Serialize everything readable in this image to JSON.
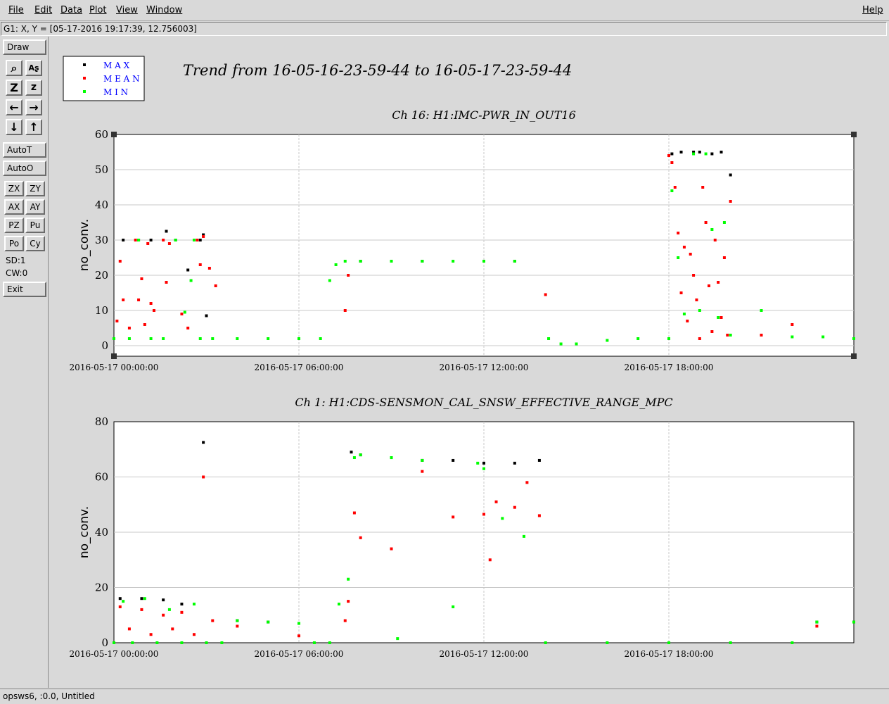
{
  "menu": {
    "file": "File",
    "edit": "Edit",
    "data": "Data",
    "plot": "Plot",
    "view": "View",
    "window": "Window",
    "help": "Help"
  },
  "status": "G1: X, Y = [05-17-2016 19:17:39, 12.756003]",
  "toolbar": {
    "draw": "Draw",
    "icons": [
      "magnify-icon",
      "text-ab-icon",
      "zoom-big-icon",
      "zoom-small-icon",
      "arrow-left-icon",
      "arrow-right-icon",
      "arrow-down-icon",
      "arrow-up-icon"
    ],
    "autot": "AutoT",
    "autoo": "AutoO",
    "grid_buttons": [
      "ZX",
      "ZY",
      "AX",
      "AY",
      "PZ",
      "Pu",
      "Po",
      "Cy"
    ],
    "sd": "SD:1",
    "cw": "CW:0",
    "exit": "Exit"
  },
  "legend": {
    "entries": [
      {
        "label": "M A X",
        "color": "#000000"
      },
      {
        "label": "M E A N",
        "color": "#ff0000"
      },
      {
        "label": "M I N",
        "color": "#00ff00"
      }
    ]
  },
  "main_title": "Trend from 16-05-16-23-59-44 to 16-05-17-23-59-44",
  "footer": "opsws6, :0.0, Untitled",
  "chart_data": [
    {
      "type": "scatter",
      "title": "Ch 16: H1:IMC-PWR_IN_OUT16",
      "ylabel": "no_conv.",
      "xlabel": "",
      "ylim": [
        -3,
        60
      ],
      "yticks": [
        0,
        10,
        20,
        30,
        40,
        50,
        60
      ],
      "xlim_hours": [
        0,
        24
      ],
      "xticks": [
        "2016-05-17 00:00:00",
        "2016-05-17 06:00:00",
        "2016-05-17 12:00:00",
        "2016-05-17 18:00:00"
      ],
      "grid": true,
      "series": [
        {
          "name": "MAX",
          "color": "#000000",
          "x": [
            0.3,
            0.8,
            1.2,
            1.7,
            2.0,
            2.4,
            2.8,
            2.9,
            3.0,
            8.0,
            10.0,
            13.0,
            18.1,
            18.4,
            18.8,
            19.0,
            19.4,
            19.7,
            20.0
          ],
          "y": [
            30,
            30,
            30,
            32.5,
            30,
            21.5,
            30,
            31.5,
            8.5,
            24,
            24,
            24,
            54.5,
            55,
            55,
            55,
            54.5,
            55,
            48.5
          ]
        },
        {
          "name": "MEAN",
          "color": "#ff0000",
          "x": [
            0.1,
            0.2,
            0.3,
            0.5,
            0.7,
            0.8,
            0.9,
            1.0,
            1.1,
            1.2,
            1.3,
            1.6,
            1.7,
            1.8,
            2.2,
            2.4,
            2.7,
            2.8,
            2.9,
            3.1,
            3.3,
            7.5,
            7.6,
            14.0,
            18.0,
            18.1,
            18.2,
            18.3,
            18.4,
            18.5,
            18.6,
            18.7,
            18.8,
            18.9,
            19.0,
            19.1,
            19.2,
            19.3,
            19.4,
            19.5,
            19.6,
            19.7,
            19.8,
            19.9,
            20.0,
            21.0,
            22.0
          ],
          "y": [
            7,
            24,
            13,
            5,
            30,
            13,
            19,
            6,
            29,
            12,
            10,
            30,
            18,
            29,
            9,
            5,
            30,
            23,
            31,
            22,
            17,
            10,
            20,
            14.5,
            54,
            52,
            45,
            32,
            15,
            28,
            7,
            26,
            20,
            13,
            2,
            45,
            35,
            17,
            4,
            30,
            18,
            8,
            25,
            3,
            41,
            3,
            6
          ]
        },
        {
          "name": "MIN",
          "color": "#00ff00",
          "x": [
            0.0,
            0.5,
            0.8,
            1.2,
            1.6,
            2.0,
            2.3,
            2.5,
            2.6,
            2.8,
            3.2,
            4.0,
            5.0,
            6.0,
            6.7,
            7.0,
            7.2,
            7.5,
            8.0,
            9.0,
            10.0,
            11.0,
            12.0,
            13.0,
            14.1,
            14.5,
            15.0,
            16.0,
            17.0,
            18.0,
            18.1,
            18.3,
            18.5,
            18.8,
            19.0,
            19.2,
            19.4,
            19.6,
            19.8,
            20.0,
            21.0,
            22.0,
            23.0,
            24.0
          ],
          "y": [
            2,
            2,
            30,
            2,
            2,
            30,
            9.5,
            18.5,
            30,
            2,
            2,
            2,
            2,
            2,
            2,
            18.5,
            23,
            24,
            24,
            24,
            24,
            24,
            24,
            24,
            2,
            0.5,
            0.5,
            1.5,
            2,
            2,
            44,
            25,
            9,
            54.5,
            10,
            54.5,
            33,
            8,
            35,
            3,
            10,
            2.5,
            2.5,
            2
          ]
        }
      ]
    },
    {
      "type": "scatter",
      "title": "Ch 1: H1:CDS-SENSMON_CAL_SNSW_EFFECTIVE_RANGE_MPC",
      "ylabel": "no_conv.",
      "xlabel": "",
      "ylim": [
        0,
        80
      ],
      "yticks": [
        0,
        20,
        40,
        60,
        80
      ],
      "xlim_hours": [
        0,
        24
      ],
      "xticks": [
        "2016-05-17 00:00:00",
        "2016-05-17 06:00:00",
        "2016-05-17 12:00:00",
        "2016-05-17 18:00:00"
      ],
      "grid": true,
      "series": [
        {
          "name": "MAX",
          "color": "#000000",
          "x": [
            0.2,
            0.9,
            1.6,
            2.2,
            2.9,
            4.0,
            5.0,
            6.0,
            7.7,
            8.0,
            9.0,
            10.0,
            11.0,
            12.0,
            13.0,
            13.8,
            22.8,
            24.0
          ],
          "y": [
            16,
            16,
            15.5,
            14,
            72.5,
            8,
            7.5,
            7,
            69,
            68,
            67,
            66,
            66,
            65,
            65,
            66,
            7.5,
            7.5
          ]
        },
        {
          "name": "MEAN",
          "color": "#ff0000",
          "x": [
            0.2,
            0.5,
            0.9,
            1.2,
            1.6,
            1.9,
            2.2,
            2.6,
            2.9,
            3.2,
            4.0,
            6.0,
            7.5,
            7.6,
            7.8,
            8.0,
            9.0,
            10.0,
            11.0,
            12.0,
            12.2,
            12.4,
            13.0,
            13.4,
            13.8,
            22.8
          ],
          "y": [
            13,
            5,
            12,
            3,
            10,
            5,
            11,
            3,
            60,
            8,
            6,
            2.5,
            8,
            15,
            47,
            38,
            34,
            62,
            45.5,
            46.5,
            30,
            51,
            49,
            58,
            46,
            6
          ]
        },
        {
          "name": "MIN",
          "color": "#00ff00",
          "x": [
            0.0,
            0.3,
            0.6,
            1.0,
            1.4,
            1.8,
            2.2,
            2.6,
            3.0,
            3.5,
            4.0,
            5.0,
            6.0,
            6.5,
            7.0,
            7.3,
            7.6,
            7.8,
            8.0,
            9.0,
            9.2,
            10.0,
            11.0,
            11.8,
            12.0,
            12.6,
            13.3,
            14.0,
            16.0,
            18.0,
            20.0,
            22.0,
            22.8,
            24.0
          ],
          "y": [
            0,
            15,
            0,
            16,
            0,
            12,
            0,
            14,
            0,
            0,
            8,
            7.5,
            7,
            0,
            0,
            14,
            23,
            67,
            68,
            67,
            1.5,
            66,
            13,
            65,
            63,
            45,
            38.5,
            0,
            0,
            0,
            0,
            0,
            7.5,
            7.5
          ]
        }
      ]
    }
  ]
}
